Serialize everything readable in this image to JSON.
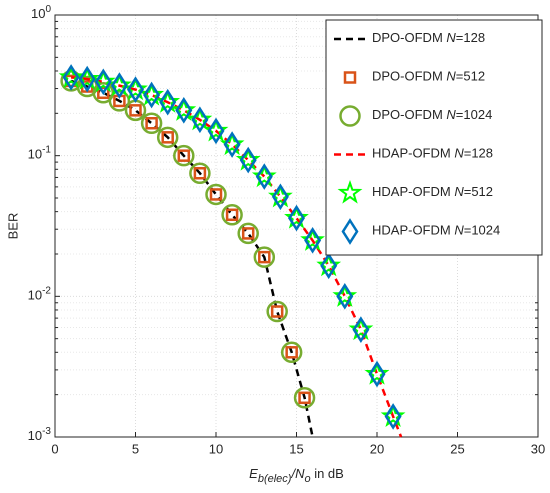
{
  "chart_data": {
    "type": "line",
    "log_y": true,
    "grid": true,
    "minor_grid": true,
    "x_label": "E_{b(elec)}/N_{o} in dB",
    "y_label": "BER",
    "xlim": [
      0,
      30
    ],
    "xticks": [
      0,
      5,
      10,
      15,
      20,
      25,
      30
    ],
    "ylim": [
      0.001,
      1
    ],
    "yticks": [
      {
        "value": 0.001,
        "label": "10^-3"
      },
      {
        "value": 0.01,
        "label": "10^-2"
      },
      {
        "value": 0.1,
        "label": "10^-1"
      },
      {
        "value": 1,
        "label": "10^0"
      }
    ],
    "legend_position": "upper right",
    "series": [
      {
        "name": "DPO-OFDM N=128",
        "color": "#000000",
        "line_style": "dashed",
        "marker": "none",
        "x": [
          1,
          2,
          3,
          4,
          5,
          6,
          7,
          8,
          9,
          10,
          11,
          12,
          13,
          13.8,
          14.7,
          15.5,
          16
        ],
        "values": [
          0.34,
          0.31,
          0.28,
          0.245,
          0.21,
          0.17,
          0.135,
          0.1,
          0.075,
          0.053,
          0.038,
          0.028,
          0.019,
          0.0078,
          0.004,
          0.0019,
          0.001
        ]
      },
      {
        "name": "DPO-OFDM N=512",
        "color": "#d95319",
        "line_style": "none",
        "marker": "square",
        "x": [
          1,
          2,
          3,
          4,
          5,
          6,
          7,
          8,
          9,
          10,
          11,
          12,
          13,
          13.8,
          14.7,
          15.5
        ],
        "values": [
          0.34,
          0.31,
          0.28,
          0.245,
          0.21,
          0.17,
          0.135,
          0.1,
          0.075,
          0.053,
          0.038,
          0.028,
          0.019,
          0.0078,
          0.004,
          0.0019
        ]
      },
      {
        "name": "DPO-OFDM N=1024",
        "color": "#77ac30",
        "line_style": "none",
        "marker": "circle",
        "x": [
          1,
          2,
          3,
          4,
          5,
          6,
          7,
          8,
          9,
          10,
          11,
          12,
          13,
          13.8,
          14.7,
          15.5
        ],
        "values": [
          0.34,
          0.31,
          0.28,
          0.245,
          0.21,
          0.17,
          0.135,
          0.1,
          0.075,
          0.053,
          0.038,
          0.028,
          0.019,
          0.0078,
          0.004,
          0.0019
        ]
      },
      {
        "name": "HDAP-OFDM N=128",
        "color": "#ff0000",
        "line_style": "dashed",
        "marker": "none",
        "x": [
          1,
          2,
          3,
          4,
          5,
          6,
          7,
          8,
          9,
          10,
          11,
          12,
          13,
          14,
          15,
          16,
          17,
          18,
          19,
          20,
          21,
          21.5
        ],
        "values": [
          0.36,
          0.35,
          0.335,
          0.315,
          0.295,
          0.27,
          0.24,
          0.21,
          0.18,
          0.15,
          0.12,
          0.093,
          0.071,
          0.051,
          0.036,
          0.025,
          0.0165,
          0.01,
          0.0058,
          0.0028,
          0.0014,
          0.001
        ]
      },
      {
        "name": "HDAP-OFDM N=512",
        "color": "#00ff00",
        "line_style": "none",
        "marker": "star",
        "x": [
          1,
          2,
          3,
          4,
          5,
          6,
          7,
          8,
          9,
          10,
          11,
          12,
          13,
          14,
          15,
          16,
          17,
          18,
          19,
          20,
          21
        ],
        "values": [
          0.36,
          0.35,
          0.335,
          0.315,
          0.295,
          0.27,
          0.24,
          0.21,
          0.18,
          0.15,
          0.12,
          0.093,
          0.071,
          0.051,
          0.036,
          0.025,
          0.0165,
          0.01,
          0.0058,
          0.0028,
          0.0014
        ]
      },
      {
        "name": "HDAP-OFDM N=1024",
        "color": "#0072bd",
        "line_style": "none",
        "marker": "diamond",
        "x": [
          1,
          2,
          3,
          4,
          5,
          6,
          7,
          8,
          9,
          10,
          11,
          12,
          13,
          14,
          15,
          16,
          17,
          18,
          19,
          20,
          21
        ],
        "values": [
          0.36,
          0.35,
          0.335,
          0.315,
          0.295,
          0.27,
          0.24,
          0.21,
          0.18,
          0.15,
          0.12,
          0.093,
          0.071,
          0.051,
          0.036,
          0.025,
          0.0165,
          0.01,
          0.0058,
          0.0028,
          0.0014
        ]
      }
    ]
  }
}
